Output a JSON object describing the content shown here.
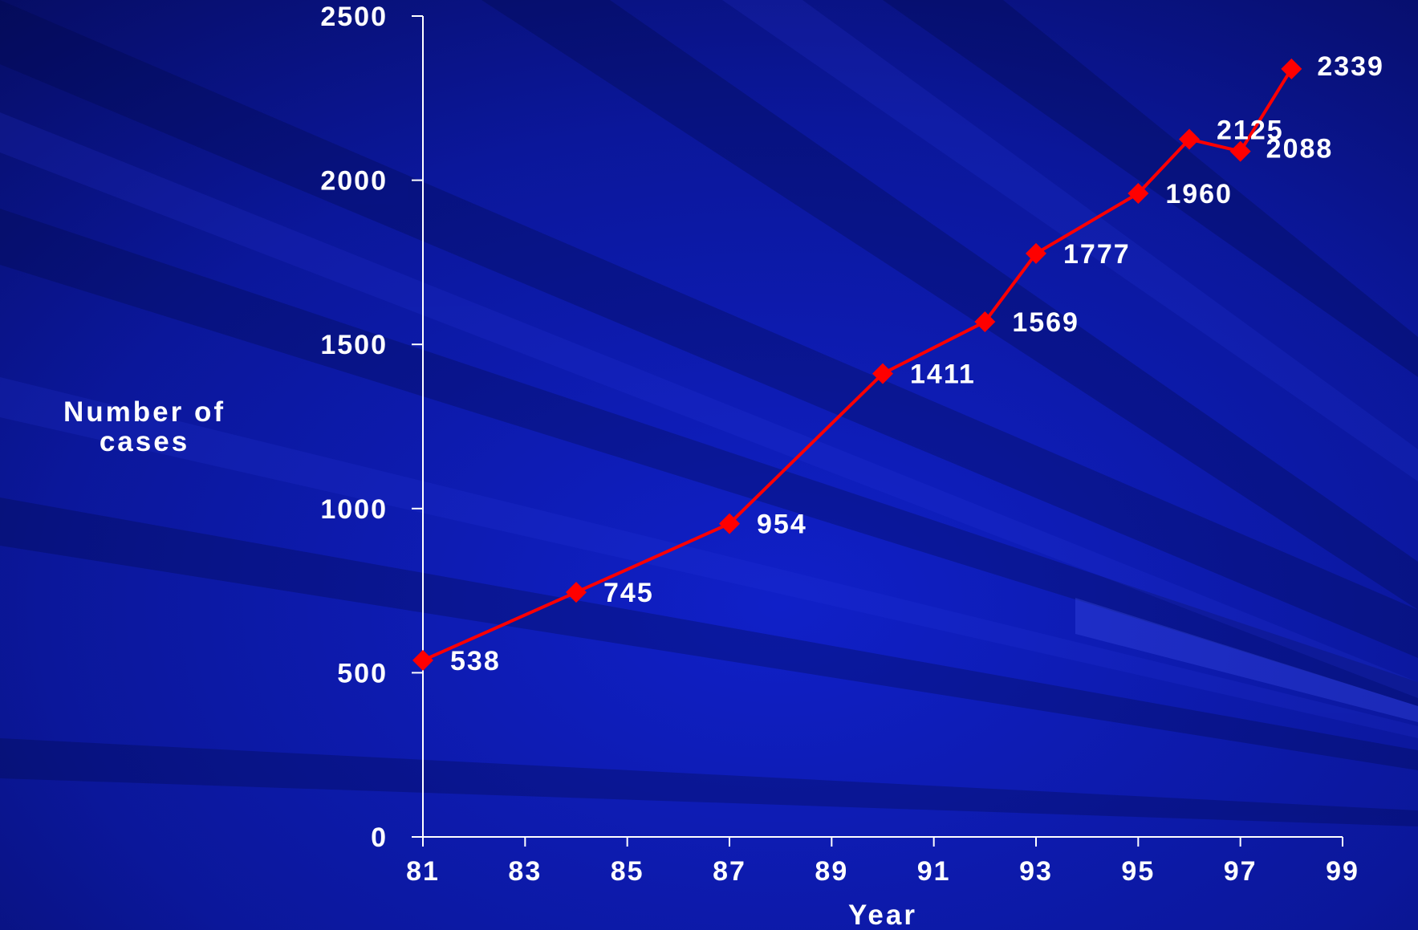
{
  "chart_data": {
    "type": "line",
    "xlabel": "Year",
    "ylabel": [
      "Number of",
      "cases"
    ],
    "xlim": [
      81,
      99
    ],
    "ylim": [
      0,
      2500
    ],
    "x_ticks": [
      "81",
      "83",
      "85",
      "87",
      "89",
      "91",
      "93",
      "95",
      "97",
      "99"
    ],
    "y_ticks": [
      "0",
      "500",
      "1000",
      "1500",
      "2000",
      "2500"
    ],
    "series": [
      {
        "x": [
          81,
          84,
          87,
          90,
          92,
          93,
          95,
          96,
          97,
          98
        ],
        "values": [
          538,
          745,
          954,
          1411,
          1569,
          1777,
          1960,
          2125,
          2088,
          2339
        ],
        "labels": [
          "538",
          "745",
          "954",
          "1411",
          "1569",
          "1777",
          "1960",
          "2125",
          "2088",
          "2339"
        ],
        "color": "#ff0000",
        "marker": "diamond"
      }
    ],
    "grid": false,
    "legend": "none",
    "colors": {
      "background": "#0a1590",
      "axis": "#ffffff",
      "text": "#ffffff"
    }
  }
}
